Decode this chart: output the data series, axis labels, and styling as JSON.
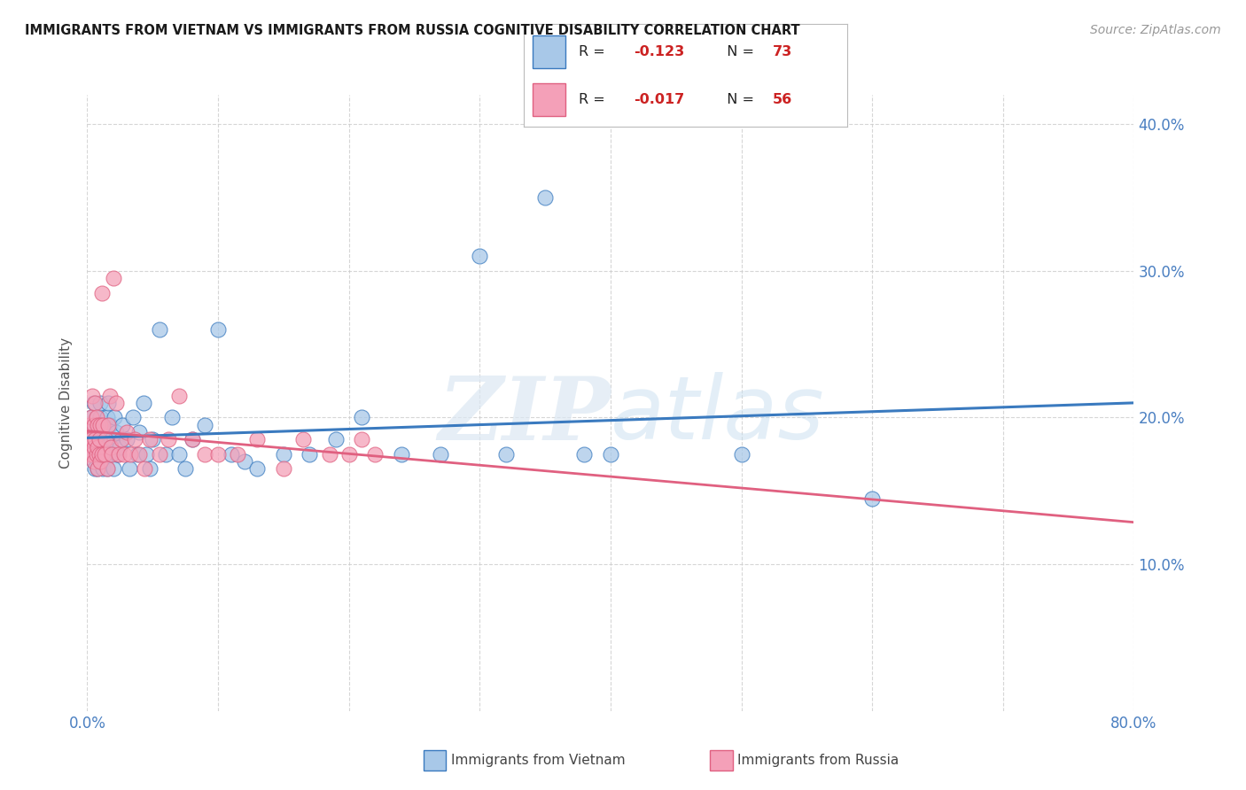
{
  "title": "IMMIGRANTS FROM VIETNAM VS IMMIGRANTS FROM RUSSIA COGNITIVE DISABILITY CORRELATION CHART",
  "source": "Source: ZipAtlas.com",
  "ylabel": "Cognitive Disability",
  "x_min": 0.0,
  "x_max": 0.8,
  "y_min": 0.0,
  "y_max": 0.42,
  "color_vietnam": "#a8c8e8",
  "color_russia": "#f4a0b8",
  "trendline_color_vietnam": "#3a7abf",
  "trendline_color_russia": "#e06080",
  "watermark_zip": "ZIP",
  "watermark_atlas": "atlas",
  "legend_r_vietnam": "-0.123",
  "legend_n_vietnam": "73",
  "legend_r_russia": "-0.017",
  "legend_n_russia": "56",
  "vietnam_x": [
    0.002,
    0.003,
    0.003,
    0.004,
    0.004,
    0.005,
    0.005,
    0.005,
    0.006,
    0.006,
    0.007,
    0.007,
    0.007,
    0.008,
    0.008,
    0.008,
    0.009,
    0.009,
    0.01,
    0.01,
    0.01,
    0.011,
    0.011,
    0.012,
    0.012,
    0.013,
    0.013,
    0.014,
    0.015,
    0.015,
    0.016,
    0.017,
    0.018,
    0.019,
    0.02,
    0.021,
    0.022,
    0.023,
    0.025,
    0.027,
    0.03,
    0.032,
    0.035,
    0.038,
    0.04,
    0.043,
    0.045,
    0.048,
    0.05,
    0.055,
    0.06,
    0.065,
    0.07,
    0.075,
    0.08,
    0.09,
    0.1,
    0.11,
    0.12,
    0.13,
    0.15,
    0.17,
    0.19,
    0.21,
    0.24,
    0.27,
    0.3,
    0.32,
    0.35,
    0.38,
    0.4,
    0.5,
    0.6
  ],
  "vietnam_y": [
    0.19,
    0.18,
    0.2,
    0.175,
    0.185,
    0.17,
    0.195,
    0.21,
    0.165,
    0.185,
    0.175,
    0.19,
    0.2,
    0.18,
    0.195,
    0.165,
    0.185,
    0.175,
    0.17,
    0.2,
    0.21,
    0.195,
    0.175,
    0.185,
    0.165,
    0.19,
    0.175,
    0.18,
    0.2,
    0.165,
    0.21,
    0.195,
    0.175,
    0.185,
    0.165,
    0.2,
    0.19,
    0.175,
    0.18,
    0.195,
    0.185,
    0.165,
    0.2,
    0.175,
    0.19,
    0.21,
    0.175,
    0.165,
    0.185,
    0.26,
    0.175,
    0.2,
    0.175,
    0.165,
    0.185,
    0.195,
    0.26,
    0.175,
    0.17,
    0.165,
    0.175,
    0.175,
    0.185,
    0.2,
    0.175,
    0.175,
    0.31,
    0.175,
    0.35,
    0.175,
    0.175,
    0.175,
    0.145
  ],
  "russia_x": [
    0.001,
    0.002,
    0.002,
    0.003,
    0.003,
    0.004,
    0.004,
    0.005,
    0.005,
    0.005,
    0.006,
    0.006,
    0.007,
    0.007,
    0.008,
    0.008,
    0.008,
    0.009,
    0.009,
    0.01,
    0.01,
    0.011,
    0.011,
    0.012,
    0.013,
    0.014,
    0.015,
    0.016,
    0.017,
    0.018,
    0.019,
    0.02,
    0.022,
    0.024,
    0.026,
    0.028,
    0.03,
    0.033,
    0.036,
    0.04,
    0.044,
    0.048,
    0.055,
    0.062,
    0.07,
    0.08,
    0.09,
    0.1,
    0.115,
    0.13,
    0.15,
    0.165,
    0.185,
    0.2,
    0.21,
    0.22
  ],
  "russia_y": [
    0.185,
    0.175,
    0.195,
    0.185,
    0.2,
    0.175,
    0.215,
    0.18,
    0.195,
    0.17,
    0.21,
    0.185,
    0.2,
    0.175,
    0.18,
    0.195,
    0.165,
    0.175,
    0.185,
    0.195,
    0.17,
    0.285,
    0.175,
    0.195,
    0.175,
    0.185,
    0.165,
    0.195,
    0.215,
    0.18,
    0.175,
    0.295,
    0.21,
    0.175,
    0.185,
    0.175,
    0.19,
    0.175,
    0.185,
    0.175,
    0.165,
    0.185,
    0.175,
    0.185,
    0.215,
    0.185,
    0.175,
    0.175,
    0.175,
    0.185,
    0.165,
    0.185,
    0.175,
    0.175,
    0.185,
    0.175
  ]
}
